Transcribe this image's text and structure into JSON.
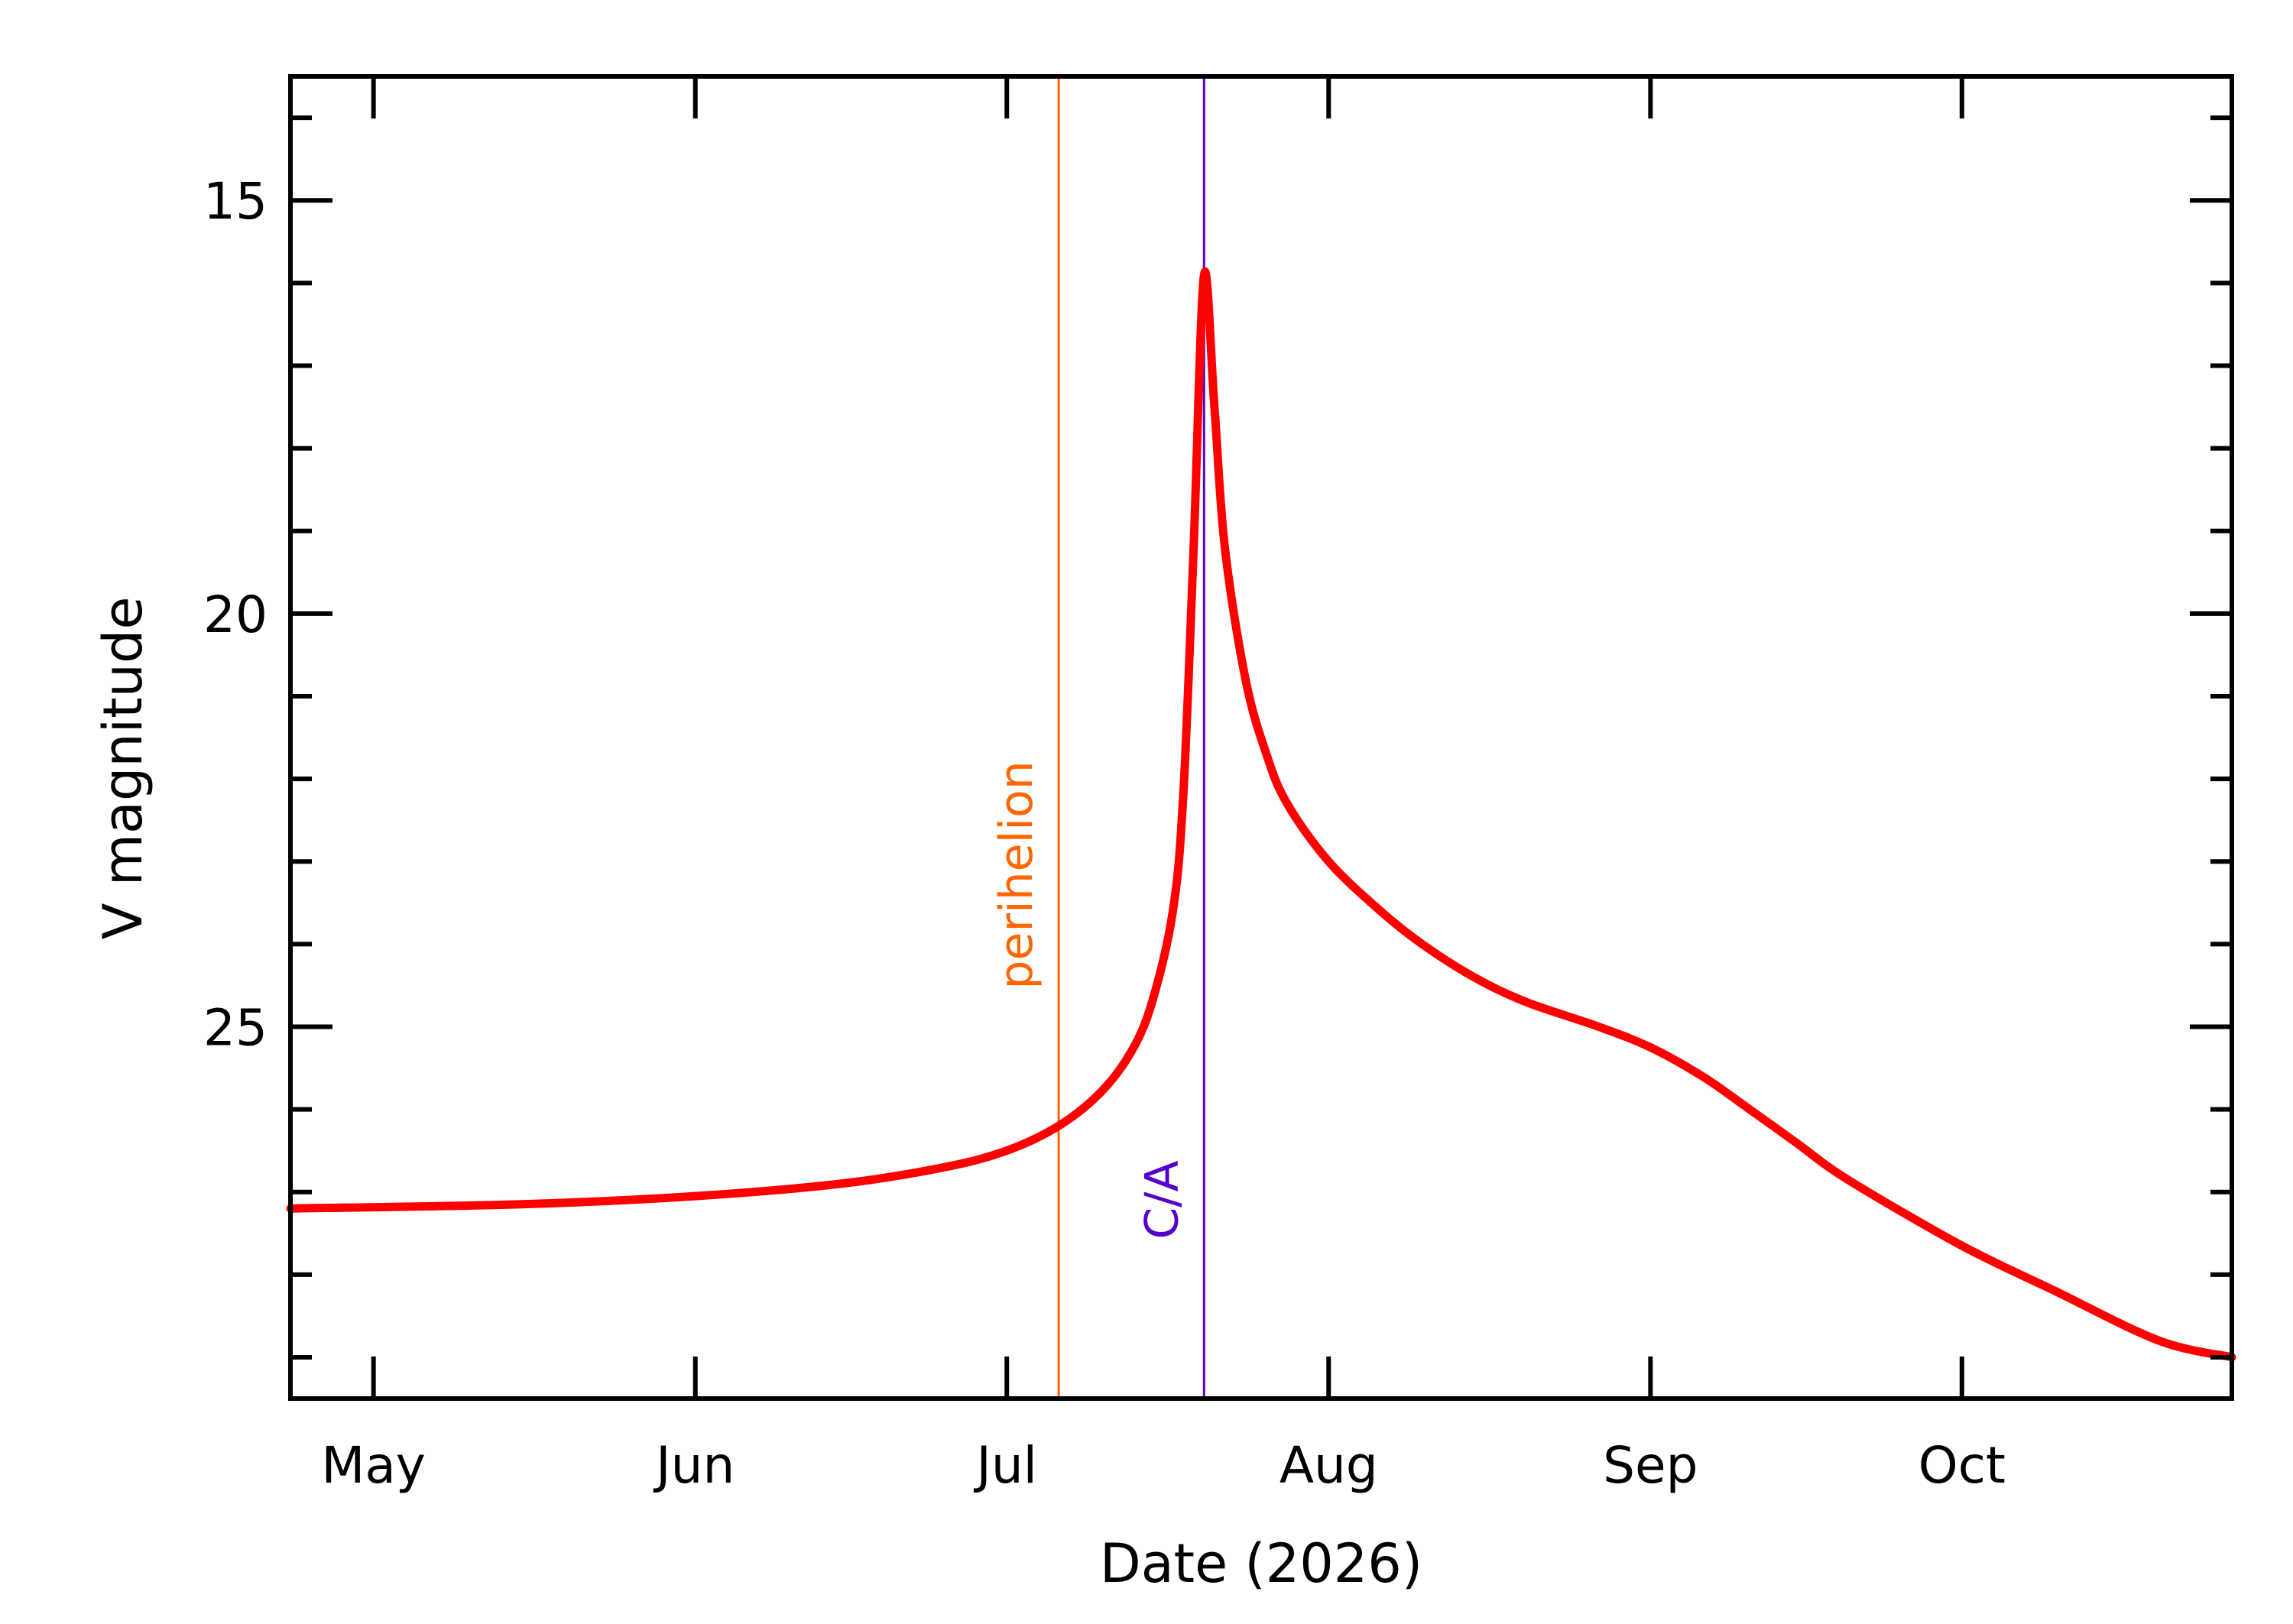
{
  "chart_data": {
    "type": "line",
    "title": "",
    "xlabel": "Date (2026)",
    "ylabel": "V magnitude",
    "x_ticks": [
      "May",
      "Jun",
      "Jul",
      "Aug",
      "Sep",
      "Oct"
    ],
    "x_tick_dates": [
      "2026-05-01",
      "2026-06-01",
      "2026-07-01",
      "2026-08-01",
      "2026-09-01",
      "2026-10-01"
    ],
    "xlim": [
      "2026-04-23",
      "2026-10-27"
    ],
    "y_ticks": [
      "15",
      "20",
      "25"
    ],
    "y_tick_values": [
      15,
      20,
      25
    ],
    "ylim": [
      29.5,
      13.5
    ],
    "y_inverted": true,
    "grid": false,
    "series": [
      {
        "color": "#ff0000",
        "x": [
          "2026-04-23",
          "2026-05-15",
          "2026-06-01",
          "2026-06-15",
          "2026-06-25",
          "2026-07-01",
          "2026-07-06",
          "2026-07-10",
          "2026-07-13",
          "2026-07-15",
          "2026-07-17",
          "2026-07-18",
          "2026-07-19",
          "2026-07-20",
          "2026-07-21",
          "2026-07-22",
          "2026-07-24",
          "2026-07-26",
          "2026-07-28",
          "2026-08-01",
          "2026-08-06",
          "2026-08-10",
          "2026-08-15",
          "2026-08-20",
          "2026-08-27",
          "2026-09-01",
          "2026-09-06",
          "2026-09-10",
          "2026-09-15",
          "2026-09-20",
          "2026-10-01",
          "2026-10-10",
          "2026-10-20",
          "2026-10-27"
        ],
        "y": [
          27.2,
          27.15,
          27.05,
          26.9,
          26.7,
          26.5,
          26.2,
          25.8,
          25.3,
          24.7,
          23.6,
          22.2,
          19.2,
          15.9,
          17.5,
          19.2,
          20.8,
          21.7,
          22.3,
          23.0,
          23.6,
          24.0,
          24.4,
          24.7,
          25.0,
          25.25,
          25.6,
          25.95,
          26.4,
          26.85,
          27.65,
          28.2,
          28.8,
          29.0
        ]
      }
    ],
    "markers": [
      {
        "label": "perihelion",
        "date": "2026-07-06",
        "color": "#ff6600"
      },
      {
        "label": "C/A",
        "date": "2026-07-20",
        "color": "#5500cc"
      }
    ]
  }
}
